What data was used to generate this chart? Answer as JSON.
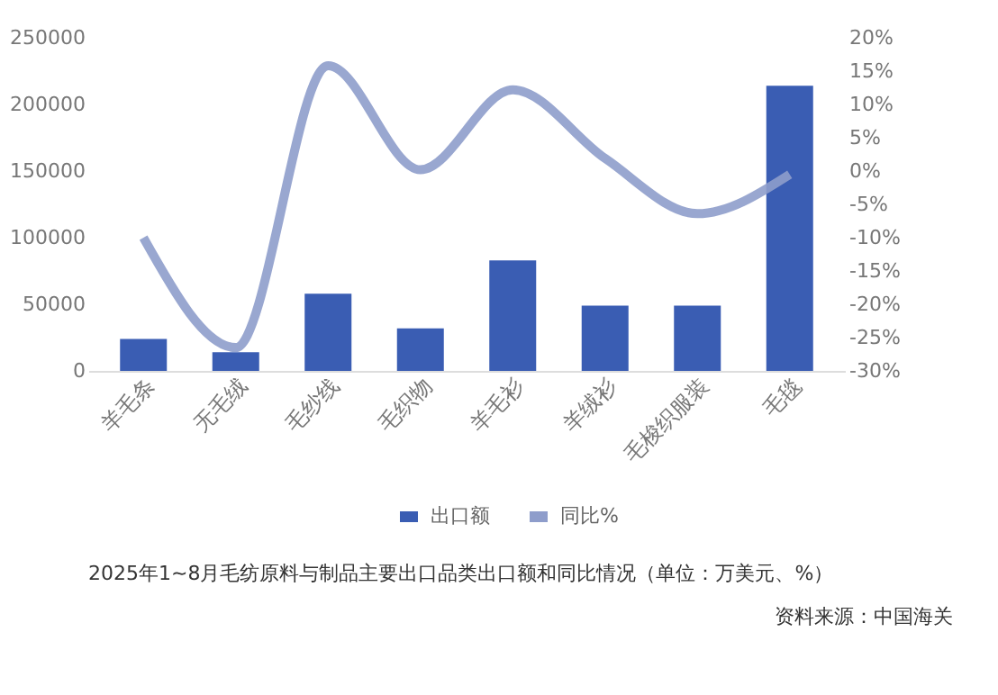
{
  "chart_data": {
    "type": "bar",
    "categories": [
      "羊毛条",
      "无毛绒",
      "毛纱线",
      "毛织物",
      "羊毛衫",
      "羊绒衫",
      "毛梭织服装",
      "毛毯"
    ],
    "series": [
      {
        "name": "出口额",
        "color": "#3a5db3",
        "values": [
          24000,
          14000,
          58000,
          32000,
          83000,
          49000,
          49000,
          214000
        ]
      },
      {
        "name": "同比%",
        "type": "line",
        "axis": "y2",
        "color": "#8e9dcb",
        "values": [
          -10,
          -26.5,
          15.8,
          0.2,
          12.2,
          1.9,
          -6.4,
          -0.5
        ]
      }
    ],
    "ylim": [
      0,
      250000
    ],
    "yticks": [
      0,
      50000,
      100000,
      150000,
      200000,
      250000
    ],
    "y2lim": [
      -30,
      20
    ],
    "y2ticks": [
      {
        "value": -30,
        "label": "-30%"
      },
      {
        "value": -25,
        "label": "-25%"
      },
      {
        "value": -20,
        "label": "-20%"
      },
      {
        "value": -15,
        "label": "-15%"
      },
      {
        "value": -10,
        "label": "-10%"
      },
      {
        "value": -5,
        "label": "-5%"
      },
      {
        "value": 0,
        "label": "0%"
      },
      {
        "value": 5,
        "label": "5%"
      },
      {
        "value": 10,
        "label": "10%"
      },
      {
        "value": 15,
        "label": "15%"
      },
      {
        "value": 20,
        "label": "20%"
      }
    ],
    "grid": false,
    "legend": "bottom",
    "annotations": [
      "2025年1~8月毛纺原料与制品主要出口品类出口额和同比情况（单位：万美元、%）",
      "资料来源：中国海关"
    ]
  }
}
